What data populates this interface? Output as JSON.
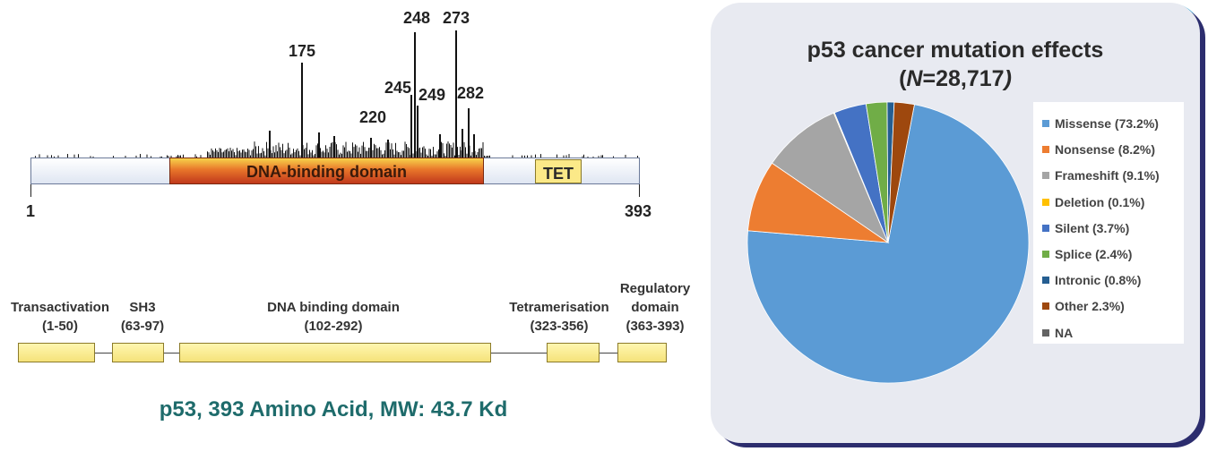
{
  "protein_map": {
    "domain_label": "DNA-binding domain",
    "tet_label": "TET",
    "start_label": "1",
    "end_label": "393",
    "peak_labels": [
      "175",
      "248",
      "273",
      "245",
      "249",
      "282",
      "220"
    ]
  },
  "domain_diagram": {
    "domains": [
      {
        "name": "Transactivation",
        "range": "(1-50)"
      },
      {
        "name": "SH3",
        "range": "(63-97)"
      },
      {
        "name": "DNA binding domain",
        "range": "(102-292)"
      },
      {
        "name": "Tetramerisation",
        "range": "(323-356)"
      },
      {
        "name": "Regulatory domain",
        "range": "(363-393)"
      }
    ],
    "caption": "p53, 393 Amino Acid, MW: 43.7 Kd"
  },
  "chart_data": {
    "type": "pie",
    "title_line1": "p53 cancer mutation effects",
    "title_N_symbol": "N",
    "title_N_value": "=28,717",
    "slices": [
      {
        "label": "Missense (73.2%)",
        "value": 73.2,
        "color": "#5b9bd5"
      },
      {
        "label": "Nonsense (8.2%)",
        "value": 8.2,
        "color": "#ed7d31"
      },
      {
        "label": "Frameshift (9.1%)",
        "value": 9.1,
        "color": "#a5a5a5"
      },
      {
        "label": "Deletion (0.1%)",
        "value": 0.1,
        "color": "#ffc000"
      },
      {
        "label": "Silent (3.7%)",
        "value": 3.7,
        "color": "#4472c4"
      },
      {
        "label": "Splice (2.4%)",
        "value": 2.4,
        "color": "#70ad47"
      },
      {
        "label": "Intronic (0.8%)",
        "value": 0.8,
        "color": "#255e91"
      },
      {
        "label": "Other 2.3%)",
        "value": 2.3,
        "color": "#9e480e"
      },
      {
        "label": "NA",
        "value": 0,
        "color": "#636363"
      }
    ],
    "legend_position": "right"
  }
}
